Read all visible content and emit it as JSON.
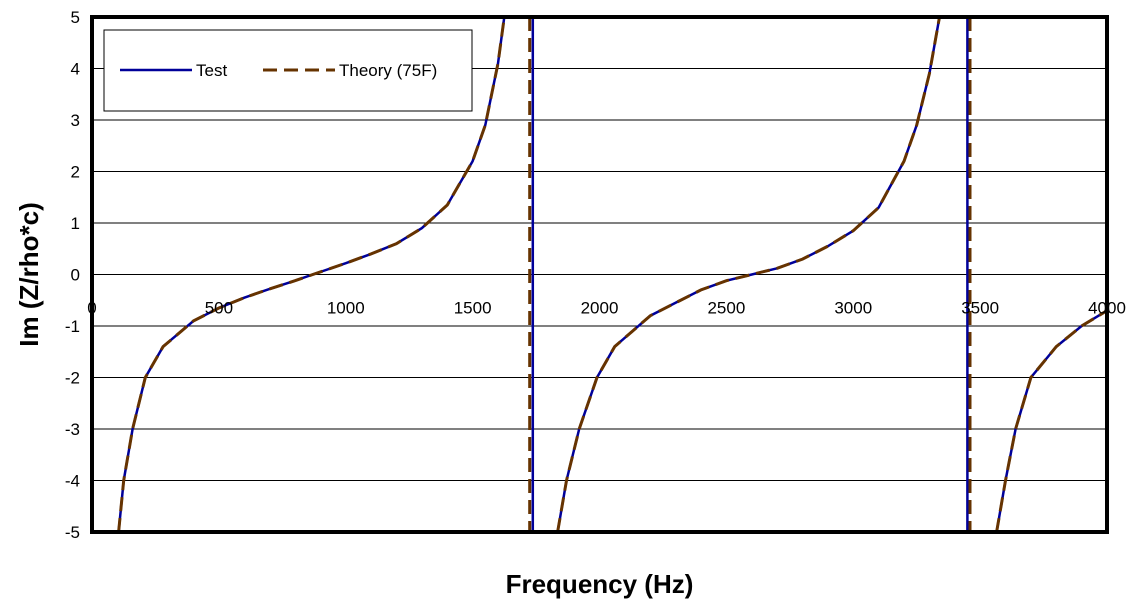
{
  "chart_data": {
    "type": "line",
    "title": "",
    "xlabel": "Frequency (Hz)",
    "ylabel": "Im (Z/rho*c)",
    "xlim": [
      0,
      4000
    ],
    "ylim": [
      -5,
      5
    ],
    "x_ticks": [
      "0",
      "500",
      "1000",
      "1500",
      "2000",
      "2500",
      "3000",
      "3500",
      "4000"
    ],
    "y_ticks": [
      "5",
      "4",
      "3",
      "2",
      "1",
      "0",
      "-1",
      "-2",
      "-3",
      "-4",
      "-5"
    ],
    "grid": "horizontal",
    "legend": {
      "position": "top-left"
    },
    "series": [
      {
        "name": "Test",
        "color": "#000099",
        "style": "solid",
        "segments": [
          [
            [
              105,
              -5
            ],
            [
              125,
              -4
            ],
            [
              160,
              -3
            ],
            [
              210,
              -2
            ],
            [
              280,
              -1.4
            ],
            [
              400,
              -0.9
            ],
            [
              500,
              -0.65
            ],
            [
              600,
              -0.45
            ],
            [
              700,
              -0.28
            ],
            [
              800,
              -0.12
            ],
            [
              870,
              0
            ],
            [
              1000,
              0.22
            ],
            [
              1100,
              0.4
            ],
            [
              1200,
              0.6
            ],
            [
              1300,
              0.9
            ],
            [
              1400,
              1.35
            ],
            [
              1500,
              2.2
            ],
            [
              1550,
              2.9
            ],
            [
              1600,
              4.1
            ],
            [
              1625,
              5
            ]
          ],
          [
            [
              1737,
              5
            ],
            [
              1737,
              -5
            ]
          ],
          [
            [
              1835,
              -5
            ],
            [
              1870,
              -4
            ],
            [
              1920,
              -3
            ],
            [
              1990,
              -2
            ],
            [
              2060,
              -1.4
            ],
            [
              2200,
              -0.8
            ],
            [
              2300,
              -0.55
            ],
            [
              2400,
              -0.3
            ],
            [
              2500,
              -0.12
            ],
            [
              2600,
              0
            ],
            [
              2700,
              0.12
            ],
            [
              2800,
              0.3
            ],
            [
              2900,
              0.55
            ],
            [
              3000,
              0.85
            ],
            [
              3100,
              1.3
            ],
            [
              3200,
              2.2
            ],
            [
              3250,
              2.9
            ],
            [
              3300,
              3.9
            ],
            [
              3340,
              5
            ]
          ],
          [
            [
              3450,
              5
            ],
            [
              3450,
              -5
            ]
          ],
          [
            [
              3565,
              -5
            ],
            [
              3600,
              -4
            ],
            [
              3640,
              -3
            ],
            [
              3700,
              -2
            ],
            [
              3800,
              -1.4
            ],
            [
              3900,
              -1
            ],
            [
              4000,
              -0.7
            ]
          ]
        ]
      },
      {
        "name": "Theory (75F)",
        "color": "#663300",
        "style": "dashed",
        "segments": [
          [
            [
              105,
              -5
            ],
            [
              125,
              -4
            ],
            [
              160,
              -3
            ],
            [
              210,
              -2
            ],
            [
              280,
              -1.4
            ],
            [
              400,
              -0.9
            ],
            [
              500,
              -0.65
            ],
            [
              600,
              -0.45
            ],
            [
              700,
              -0.28
            ],
            [
              800,
              -0.12
            ],
            [
              870,
              0
            ],
            [
              1000,
              0.22
            ],
            [
              1100,
              0.4
            ],
            [
              1200,
              0.6
            ],
            [
              1300,
              0.9
            ],
            [
              1400,
              1.35
            ],
            [
              1500,
              2.2
            ],
            [
              1550,
              2.9
            ],
            [
              1600,
              4.1
            ],
            [
              1625,
              5
            ]
          ],
          [
            [
              1725,
              5
            ],
            [
              1725,
              -5
            ]
          ],
          [
            [
              1835,
              -5
            ],
            [
              1870,
              -4
            ],
            [
              1920,
              -3
            ],
            [
              1990,
              -2
            ],
            [
              2060,
              -1.4
            ],
            [
              2200,
              -0.8
            ],
            [
              2300,
              -0.55
            ],
            [
              2400,
              -0.3
            ],
            [
              2500,
              -0.12
            ],
            [
              2600,
              0
            ],
            [
              2700,
              0.12
            ],
            [
              2800,
              0.3
            ],
            [
              2900,
              0.55
            ],
            [
              3000,
              0.85
            ],
            [
              3100,
              1.3
            ],
            [
              3200,
              2.2
            ],
            [
              3250,
              2.9
            ],
            [
              3300,
              3.9
            ],
            [
              3340,
              5
            ]
          ],
          [
            [
              3460,
              5
            ],
            [
              3460,
              -5
            ]
          ],
          [
            [
              3565,
              -5
            ],
            [
              3600,
              -4
            ],
            [
              3640,
              -3
            ],
            [
              3700,
              -2
            ],
            [
              3800,
              -1.4
            ],
            [
              3900,
              -1
            ],
            [
              4000,
              -0.7
            ]
          ]
        ]
      }
    ]
  }
}
